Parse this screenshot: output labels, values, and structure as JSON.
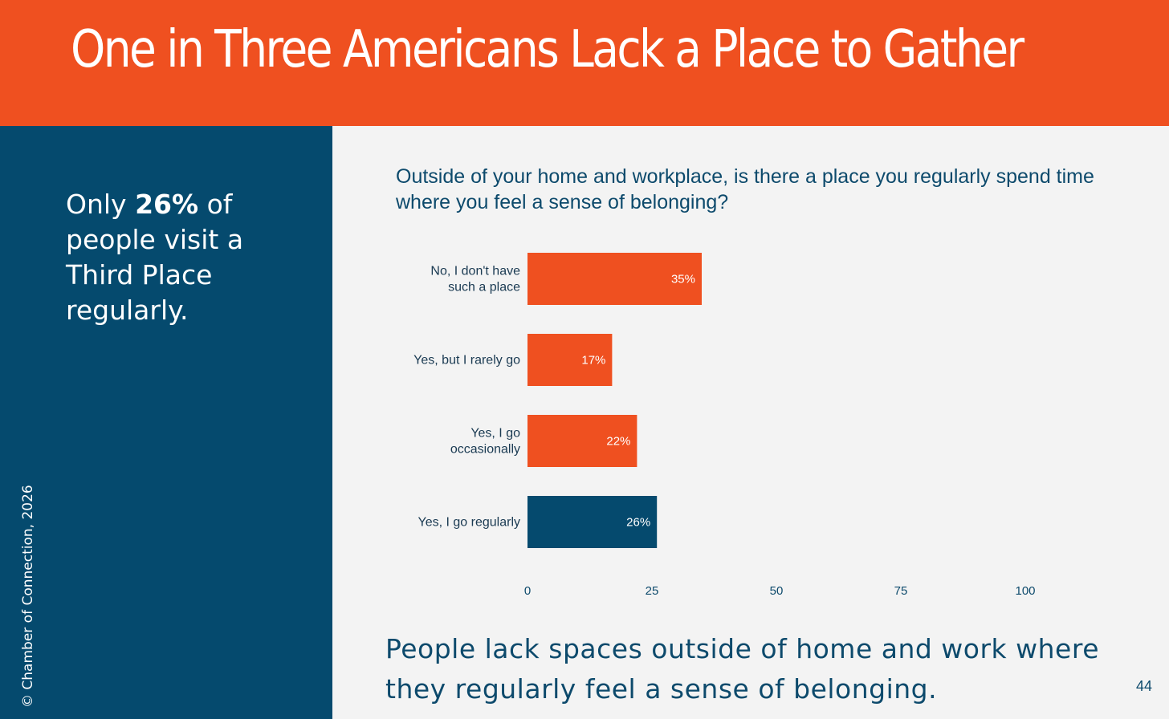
{
  "header": {
    "title": "One in Three Americans Lack a Place to Gather"
  },
  "sidebar": {
    "heading_pre": "Only ",
    "heading_bold": "26%",
    "heading_post": " of people visit a Third Place regularly.",
    "copyright": "© Chamber of Connection, 2026"
  },
  "main": {
    "question": "Outside of your home and workplace, is there a place you regularly spend time where you feel a sense of belonging?",
    "conclusion": "People lack spaces outside of home and work where they regularly feel a sense of belonging.",
    "page_number": "44"
  },
  "colors": {
    "accent": "#ef5020",
    "highlight": "#054a6e",
    "background": "#f3f3f3"
  },
  "chart_data": {
    "type": "bar",
    "orientation": "horizontal",
    "title": "Outside of your home and workplace, is there a place you regularly spend time where you feel a sense of belonging?",
    "categories": [
      [
        "No, I don't have",
        "such a place"
      ],
      [
        "Yes, but I rarely go"
      ],
      [
        "Yes, I go",
        "occasionally"
      ],
      [
        "Yes, I go regularly"
      ]
    ],
    "values": [
      35,
      17,
      22,
      26
    ],
    "data_labels": [
      "35%",
      "17%",
      "22%",
      "26%"
    ],
    "bar_colors": [
      "#ef5020",
      "#ef5020",
      "#ef5020",
      "#054a6e"
    ],
    "xlim": [
      0,
      100
    ],
    "xticks": [
      0,
      25,
      50,
      75,
      100
    ],
    "grid": false,
    "legend": "none"
  }
}
